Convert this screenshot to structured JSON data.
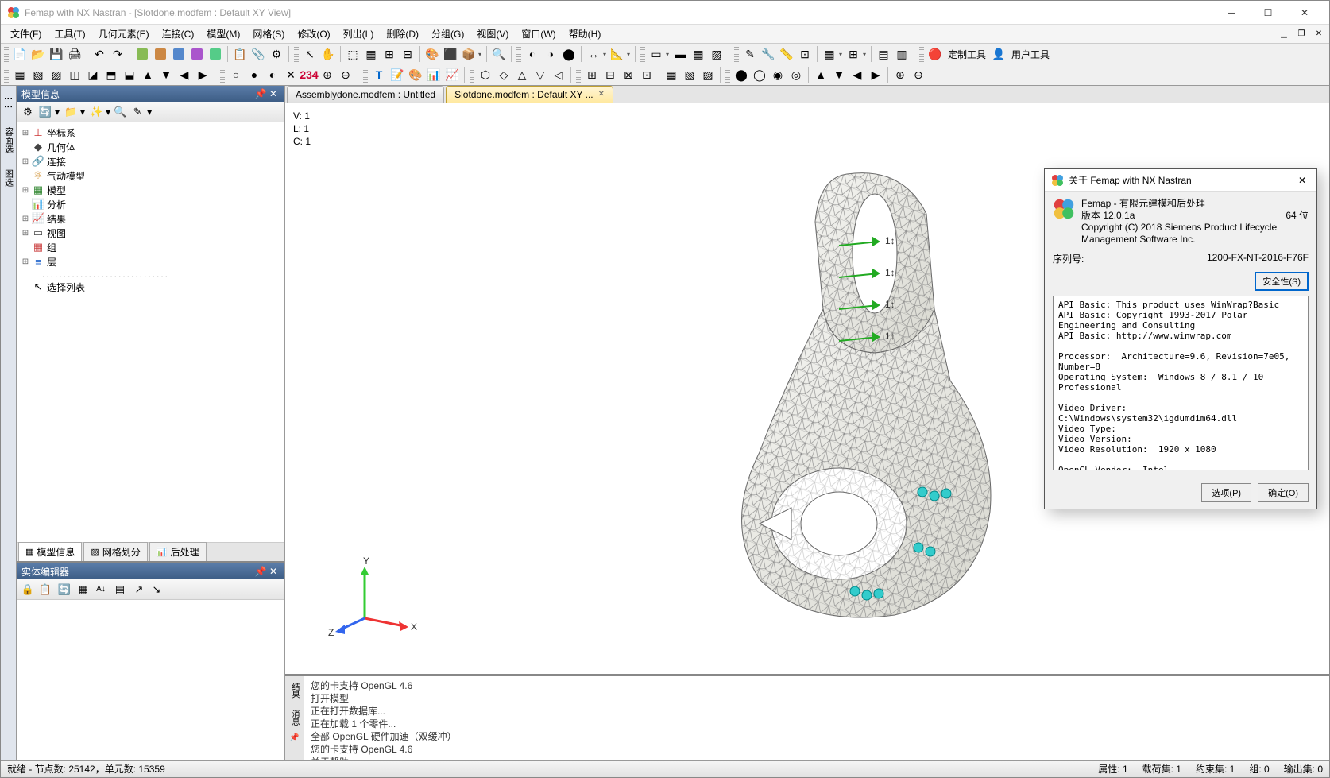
{
  "app": {
    "title": "Femap with NX Nastran - [Slotdone.modfem : Default XY View]",
    "icon_colors": [
      "#e04040",
      "#40a0e0",
      "#f0c040",
      "#40c060"
    ]
  },
  "menu": {
    "items": [
      "文件(F)",
      "工具(T)",
      "几何元素(E)",
      "连接(C)",
      "模型(M)",
      "网格(S)",
      "修改(O)",
      "列出(L)",
      "删除(D)",
      "分组(G)",
      "视图(V)",
      "窗口(W)",
      "帮助(H)"
    ]
  },
  "custom_toolbar": {
    "btn1": "定制工具",
    "btn2": "用户工具"
  },
  "doc_tabs": [
    {
      "label": "Assemblydone.modfem : Untitled",
      "active": false
    },
    {
      "label": "Slotdone.modfem : Default XY ...",
      "active": true
    }
  ],
  "viewport": {
    "v": "V: 1",
    "l": "L: 1",
    "c": "C: 1",
    "axis_labels": {
      "x": "X",
      "y": "Y",
      "z": "Z"
    }
  },
  "model_tree": {
    "pane_title": "模型信息",
    "items": [
      {
        "icon": "⊥",
        "color": "#cc3333",
        "label": "坐标系",
        "expandable": true
      },
      {
        "icon": "◆",
        "color": "#444",
        "label": "几何体",
        "expandable": false
      },
      {
        "icon": "🔗",
        "color": "#2266cc",
        "label": "连接",
        "expandable": true
      },
      {
        "icon": "⚛",
        "color": "#cc8822",
        "label": "气动模型",
        "expandable": false
      },
      {
        "icon": "▦",
        "color": "#338833",
        "label": "模型",
        "expandable": true
      },
      {
        "icon": "📊",
        "color": "#cc8822",
        "label": "分析",
        "expandable": false
      },
      {
        "icon": "📈",
        "color": "#2266cc",
        "label": "结果",
        "expandable": true
      },
      {
        "icon": "▭",
        "color": "#444",
        "label": "视图",
        "expandable": true
      },
      {
        "icon": "▦",
        "color": "#cc4444",
        "label": "组",
        "expandable": false
      },
      {
        "icon": "≡",
        "color": "#2266cc",
        "label": "层",
        "expandable": true
      }
    ],
    "select_list": "选择列表",
    "bottom_tabs": [
      "模型信息",
      "网格划分",
      "后处理"
    ]
  },
  "entity_editor": {
    "title": "实体编辑器"
  },
  "messages": {
    "rail": [
      "结果",
      "消息"
    ],
    "lines": [
      "您的卡支持 OpenGL 4.6",
      "打开模型",
      "正在打开数据库...",
      "正在加载 1 个零件...",
      "全部 OpenGL 硬件加速（双缓冲）",
      "您的卡支持 OpenGL 4.6",
      "关于帮助"
    ]
  },
  "status": {
    "left": "就绪 - 节点数: 25142，单元数: 15359",
    "cells": [
      "属性: 1",
      "载荷集: 1",
      "约束集: 1",
      "组: 0",
      "输出集: 0"
    ]
  },
  "about": {
    "title": "关于 Femap with NX Nastran",
    "product": "Femap - 有限元建模和后处理",
    "version_lbl": "版本",
    "version": "12.0.1a",
    "bits": "64 位",
    "copyright": "Copyright (C) 2018 Siemens Product Lifecycle Management Software Inc.",
    "serial_lbl": "序列号:",
    "serial": "1200-FX-NT-2016-F76F",
    "security_btn": "安全性(S)",
    "info": "API Basic: This product uses WinWrap?Basic\nAPI Basic: Copyright 1993-2017 Polar Engineering and Consulting\nAPI Basic: http://www.winwrap.com\n\nProcessor:  Architecture=9.6, Revision=7e05, Number=8\nOperating System:  Windows 8 / 8.1 / 10 Professional\n\nVideo Driver:  C:\\Windows\\system32\\igdumdim64.dll\nVideo Type:\nVideo Version:\nVideo Resolution:  1920 x 1080\n\nOpenGL Vendor:  Intel\nOpenGL Renderer:  Intel(R) UHD Graphics\nOpenGL Version:  4.6.0 - Build 30.0.101.1122\nOpenGL Status: 32 Bit Color, 24 Bit Depth\n\nPhysical Memory:  Total=16048 MBytes, Available=7973 MBytes\nAll Memory:  Total=18992 MBytes, Available=9787 MBytes",
    "options_btn": "选项(P)",
    "ok_btn": "确定(O)"
  }
}
